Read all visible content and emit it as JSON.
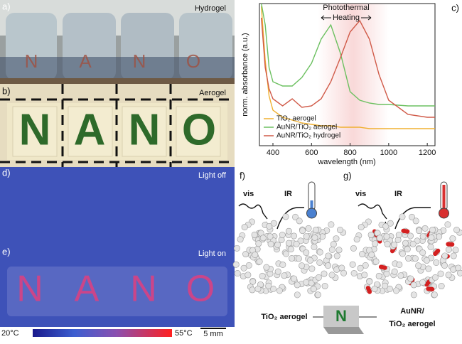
{
  "panels": {
    "a": {
      "label": "a)",
      "tag": "Hydrogel"
    },
    "b": {
      "label": "b)",
      "tag": "Aerogel"
    },
    "c": {
      "label": "c)"
    },
    "d": {
      "label": "d)",
      "tag": "Light off"
    },
    "e": {
      "label": "e)",
      "tag": "Light on"
    },
    "f": {
      "label": "f)",
      "vis": "vis",
      "ir": "IR"
    },
    "g": {
      "label": "g)",
      "vis": "vis",
      "ir": "IR"
    },
    "letters": [
      "N",
      "A",
      "N",
      "O"
    ],
    "colorbar": {
      "min_label": "20°C",
      "max_label": "55°C",
      "scale_bar": "5 mm"
    },
    "diagram": {
      "left": "TiO₂ aerogel",
      "right": [
        "AuNR/",
        "TiO₂ aerogel"
      ],
      "tile": "N"
    }
  },
  "chart_data": {
    "type": "line",
    "xlabel": "wavelength (nm)",
    "ylabel": "norm. absorbance (a.u.)",
    "annotation": [
      "Photothermal",
      "Heating"
    ],
    "x": [
      340,
      360,
      380,
      400,
      450,
      500,
      550,
      600,
      650,
      700,
      750,
      800,
      850,
      900,
      950,
      1000,
      1100,
      1200,
      1240
    ],
    "xlim": [
      330,
      1240
    ],
    "xticks": [
      400,
      600,
      800,
      1000,
      1200
    ],
    "ylim": [
      0,
      1
    ],
    "legend": "lower left",
    "series": [
      {
        "name": "TiO₂ aerogel",
        "color": "#f0b030",
        "values": [
          0.98,
          0.6,
          0.35,
          0.25,
          0.2,
          0.18,
          0.16,
          0.15,
          0.14,
          0.14,
          0.13,
          0.13,
          0.13,
          0.12,
          0.12,
          0.12,
          0.12,
          0.12,
          0.12
        ]
      },
      {
        "name": "AuNR/TiO₂ aerogel",
        "color": "#6cc060",
        "values": [
          1.0,
          0.85,
          0.55,
          0.45,
          0.42,
          0.42,
          0.48,
          0.58,
          0.75,
          0.85,
          0.65,
          0.38,
          0.32,
          0.3,
          0.29,
          0.29,
          0.28,
          0.28,
          0.28
        ]
      },
      {
        "name": "AuNR/TiO₂ hydrogel",
        "color": "#d05a48",
        "values": [
          0.9,
          0.55,
          0.4,
          0.33,
          0.28,
          0.33,
          0.27,
          0.28,
          0.33,
          0.45,
          0.62,
          0.8,
          0.88,
          0.75,
          0.5,
          0.32,
          0.22,
          0.2,
          0.2
        ]
      }
    ]
  }
}
